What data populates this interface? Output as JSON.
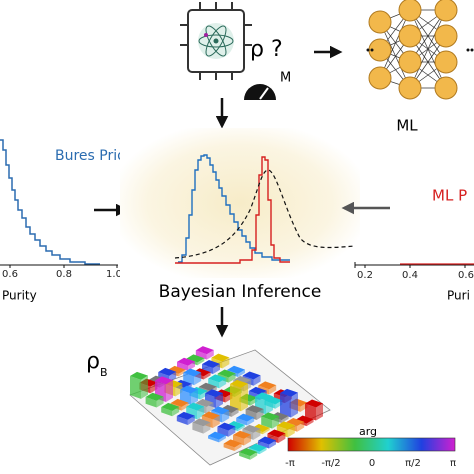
{
  "top": {
    "rho_question": "ρ ?",
    "measurement": "M",
    "ml_label": "ML"
  },
  "left_panel": {
    "title": "Bures Prior",
    "ticks": [
      "0.6",
      "0.8",
      "1.0"
    ],
    "xlabel": "Purity"
  },
  "right_panel": {
    "title": "ML P",
    "ticks": [
      "0.2",
      "0.4",
      "0.6"
    ],
    "xlabel": "Puri"
  },
  "center": {
    "label": "Bayesian Inference"
  },
  "bottom": {
    "rho": "ρ",
    "rho_sub": "B",
    "colorbar_title": "arg",
    "colorbar_ticks": [
      "-π",
      "-π/2",
      "0",
      "π/2",
      "π"
    ]
  }
}
